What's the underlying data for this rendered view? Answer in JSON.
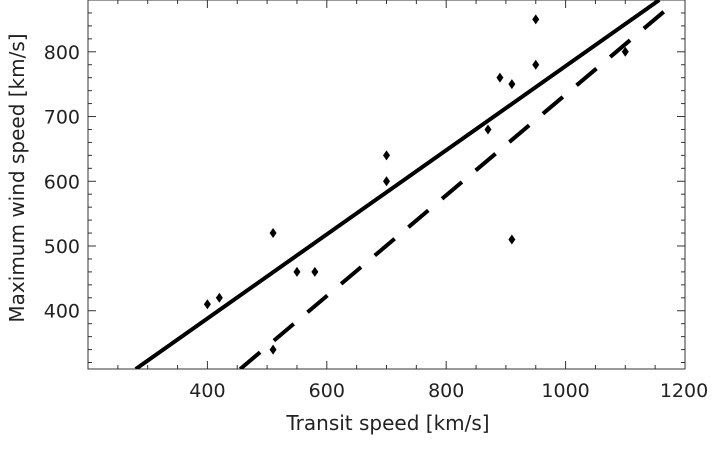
{
  "chart_data": {
    "type": "scatter",
    "xlabel": "Transit speed   [km/s]",
    "ylabel": "Maximum wind speed   [km/s]",
    "xlim": [
      200,
      1200
    ],
    "ylim": [
      310,
      880
    ],
    "xticks": [
      400,
      600,
      800,
      1000,
      1200
    ],
    "yticks": [
      400,
      500,
      600,
      700,
      800
    ],
    "grid": false,
    "points": [
      {
        "x": 400,
        "y": 410
      },
      {
        "x": 420,
        "y": 420
      },
      {
        "x": 510,
        "y": 520
      },
      {
        "x": 510,
        "y": 340
      },
      {
        "x": 550,
        "y": 460
      },
      {
        "x": 580,
        "y": 460
      },
      {
        "x": 700,
        "y": 640
      },
      {
        "x": 700,
        "y": 600
      },
      {
        "x": 870,
        "y": 680
      },
      {
        "x": 890,
        "y": 760
      },
      {
        "x": 910,
        "y": 750
      },
      {
        "x": 910,
        "y": 510
      },
      {
        "x": 950,
        "y": 850
      },
      {
        "x": 950,
        "y": 780
      },
      {
        "x": 1100,
        "y": 800
      }
    ],
    "lines": [
      {
        "style": "solid",
        "x": [
          280,
          1157
        ],
        "y": [
          310,
          880
        ]
      },
      {
        "style": "dashed",
        "x": [
          455,
          1175
        ],
        "y": [
          310,
          870
        ]
      }
    ],
    "colors": {
      "marks": "#000000",
      "frame": "#333333",
      "text": "#222222"
    }
  }
}
